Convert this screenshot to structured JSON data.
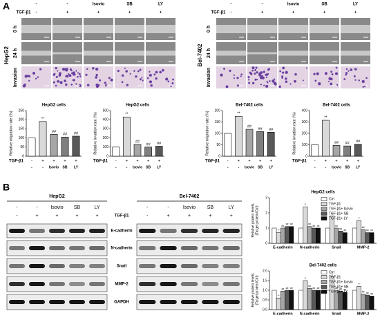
{
  "panel_labels": [
    "A",
    "B"
  ],
  "panel_a": {
    "cell_lines": [
      "HepG2",
      "Bel-7402"
    ],
    "row_labels": [
      "0 h",
      "24 h",
      "Invasion"
    ],
    "treatment_row": [
      "-",
      "-",
      "Isovio",
      "SB",
      "LY"
    ],
    "tgf_label": "TGF-β1",
    "tgf_row": [
      "-",
      "+",
      "+",
      "+",
      "+"
    ]
  },
  "panel_b": {
    "cell_lines": [
      "HepG2",
      "Bel-7402"
    ],
    "treatment_row": [
      "-",
      "-",
      "Isovio",
      "SB",
      "LY"
    ],
    "tgf_label": "TGF-β1",
    "tgf_row": [
      "-",
      "+",
      "+",
      "+",
      "+"
    ],
    "proteins": [
      "E-cadherin",
      "N-cadherin",
      "Snail",
      "MMP-2",
      "GAPDH"
    ]
  },
  "chart_data": [
    {
      "type": "bar",
      "title": "HepG2 cells",
      "ylabel": "Relative migration rate (%)",
      "tgf_label": "TGF-β1",
      "tgf_row": [
        "-",
        "+",
        "+",
        "+",
        "+"
      ],
      "categories": [
        "-",
        "-",
        "Isovio",
        "SB",
        "LY"
      ],
      "values": [
        100,
        190,
        120,
        105,
        110
      ],
      "colors": [
        "#ffffff",
        "#d9d9d9",
        "#a6a6a6",
        "#7f7f7f",
        "#595959"
      ],
      "significance": [
        null,
        "**",
        "##",
        "##",
        "##"
      ],
      "ylim": [
        0,
        250
      ],
      "yticks": [
        0,
        50,
        100,
        150,
        200,
        250
      ]
    },
    {
      "type": "bar",
      "title": "HepG2 cells",
      "ylabel": "Relative invation rate (%)",
      "tgf_label": "TGF-β1",
      "tgf_row": [
        "-",
        "+",
        "+",
        "+",
        "+"
      ],
      "categories": [
        "-",
        "-",
        "Isovio",
        "SB",
        "LY"
      ],
      "values": [
        100,
        430,
        130,
        100,
        110
      ],
      "colors": [
        "#ffffff",
        "#d9d9d9",
        "#a6a6a6",
        "#7f7f7f",
        "#595959"
      ],
      "significance": [
        null,
        "**",
        "##",
        "##",
        "##"
      ],
      "ylim": [
        0,
        500
      ],
      "yticks": [
        0,
        100,
        200,
        300,
        400,
        500
      ]
    },
    {
      "type": "bar",
      "title": "Bel-7402 cells",
      "ylabel": "Relative migration rate (%)",
      "tgf_label": "TGF-β1",
      "tgf_row": [
        "-",
        "+",
        "+",
        "+",
        "+"
      ],
      "categories": [
        "-",
        "-",
        "Isovio",
        "SB",
        "LY"
      ],
      "values": [
        100,
        175,
        118,
        108,
        105
      ],
      "colors": [
        "#ffffff",
        "#d9d9d9",
        "#a6a6a6",
        "#7f7f7f",
        "#595959"
      ],
      "significance": [
        null,
        "**",
        "##",
        "##",
        "##"
      ],
      "ylim": [
        0,
        200
      ],
      "yticks": [
        0,
        50,
        100,
        150,
        200
      ]
    },
    {
      "type": "bar",
      "title": "Bel-7402 cells",
      "ylabel": "Relative invation rate (%)",
      "tgf_label": "TGF-β1",
      "tgf_row": [
        "-",
        "+",
        "+",
        "+",
        "+"
      ],
      "categories": [
        "-",
        "-",
        "Isovio",
        "SB",
        "LY"
      ],
      "values": [
        100,
        315,
        95,
        90,
        105
      ],
      "colors": [
        "#ffffff",
        "#d9d9d9",
        "#a6a6a6",
        "#7f7f7f",
        "#595959"
      ],
      "significance": [
        null,
        "**",
        "##",
        "##",
        "##"
      ],
      "ylim": [
        0,
        400
      ],
      "yticks": [
        0,
        100,
        200,
        300,
        400
      ]
    },
    {
      "type": "grouped_bar",
      "title": "HepG2 cells",
      "ylabel": [
        "Relative protein levels",
        "(Target protein/Ctrl)"
      ],
      "categories": [
        "E-cadherin",
        "N-cadherin",
        "Snail",
        "MMP-2"
      ],
      "legend": "top-right",
      "ylim": [
        0,
        3
      ],
      "yticks": [
        0,
        1,
        2,
        3
      ],
      "series": [
        {
          "name": "Ctrl",
          "color": "#ffffff",
          "values": [
            1,
            1,
            1,
            1
          ]
        },
        {
          "name": "TGF-β1",
          "color": "#d9d9d9",
          "values": [
            0.7,
            2.4,
            1.8,
            1.5
          ],
          "significance": [
            "**",
            "**",
            "**",
            "**"
          ]
        },
        {
          "name": "TGF-β1+ Isovio",
          "color": "#a6a6a6",
          "values": [
            1.0,
            1.1,
            1.0,
            0.9
          ],
          "significance": [
            "##",
            "##",
            "##",
            "##"
          ]
        },
        {
          "name": "TGF-β1+ SB",
          "color": "#595959",
          "values": [
            1.1,
            1.0,
            0.8,
            0.7
          ],
          "significance": [
            "##",
            "##",
            "##",
            "##"
          ]
        },
        {
          "name": "TGF-β1+ LY",
          "color": "#111111",
          "values": [
            1.1,
            1.0,
            0.7,
            0.7
          ],
          "significance": [
            "##",
            "##",
            "##",
            "##"
          ]
        }
      ]
    },
    {
      "type": "grouped_bar",
      "title": "Bel-7402 cells",
      "ylabel": [
        "Relative protein levels",
        "(Target protein/Ctrl)"
      ],
      "categories": [
        "E-cadherin",
        "N-cadherin",
        "Snail",
        "MMP-2"
      ],
      "legend": "top-right",
      "ylim": [
        0,
        2
      ],
      "yticks": [
        {
          "value": 0,
          "label": "0.0"
        },
        {
          "value": 0.5,
          "label": "0.5"
        },
        {
          "value": 1,
          "label": "1.0"
        },
        {
          "value": 1.5,
          "label": "1.5"
        },
        {
          "value": 2,
          "label": "2.0"
        }
      ],
      "series": [
        {
          "name": "Ctrl",
          "color": "#ffffff",
          "values": [
            1,
            1,
            1,
            1
          ]
        },
        {
          "name": "TGF-β1",
          "color": "#d9d9d9",
          "values": [
            0.6,
            1.5,
            1.7,
            1.2
          ],
          "significance": [
            "**",
            "**",
            "**",
            "**"
          ]
        },
        {
          "name": "TGF-β1+ Isovio",
          "color": "#a6a6a6",
          "values": [
            0.95,
            1.1,
            1.0,
            0.8
          ],
          "significance": [
            "##",
            "##",
            "##",
            "##"
          ]
        },
        {
          "name": "TGF-β1+ SB",
          "color": "#595959",
          "values": [
            1.0,
            1.0,
            0.95,
            0.75
          ],
          "significance": [
            "##",
            "##",
            "##",
            "##"
          ]
        },
        {
          "name": "TGF-β1+ LY",
          "color": "#111111",
          "values": [
            1.0,
            1.0,
            0.9,
            0.7
          ],
          "significance": [
            "##",
            "##",
            "##",
            "##"
          ]
        }
      ]
    }
  ]
}
